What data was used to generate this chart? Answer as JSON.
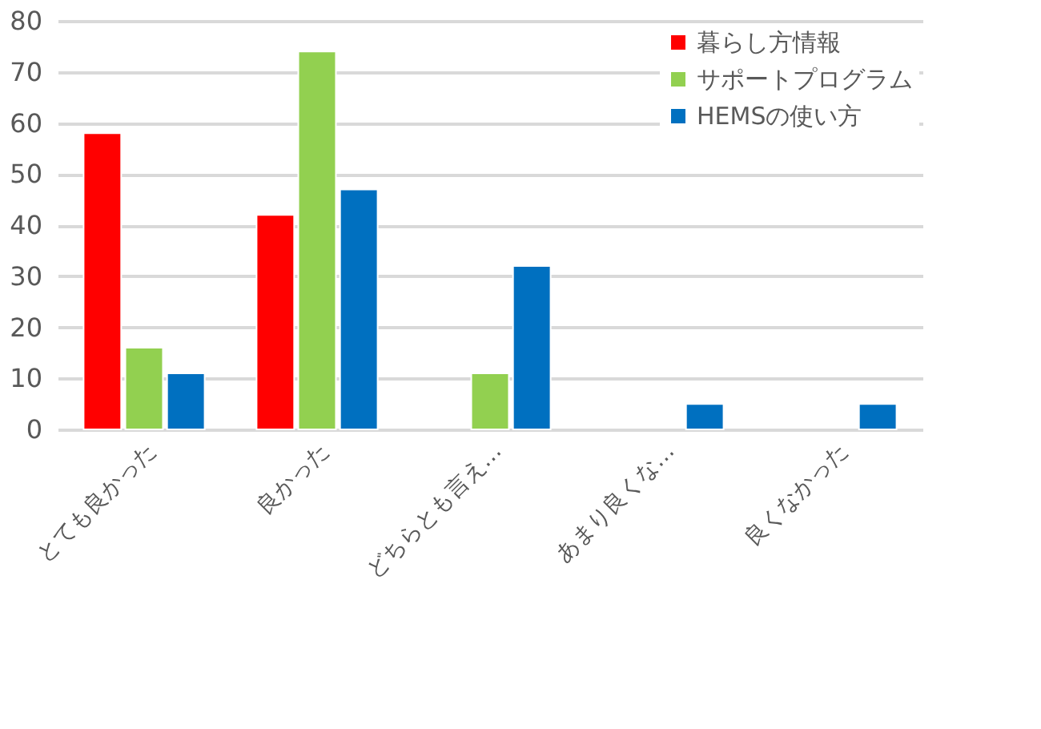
{
  "chart_data": {
    "type": "bar",
    "categories": [
      "とても良かった",
      "良かった",
      "どちらとも言え…",
      "あまり良くな…",
      "良くなかった"
    ],
    "series": [
      {
        "name": "暮らし方情報",
        "color": "#ff0000",
        "values": [
          58,
          42,
          null,
          null,
          null
        ]
      },
      {
        "name": "サポートプログラム",
        "color": "#92d050",
        "values": [
          16,
          74,
          11,
          null,
          null
        ]
      },
      {
        "name": "HEMSの使い方",
        "color": "#0070c0",
        "values": [
          11,
          47,
          32,
          5,
          5
        ]
      }
    ],
    "ylim": [
      0,
      80
    ],
    "yticks": [
      0,
      10,
      20,
      30,
      40,
      50,
      60,
      70,
      80
    ],
    "grid": "y",
    "legend": "top right"
  }
}
